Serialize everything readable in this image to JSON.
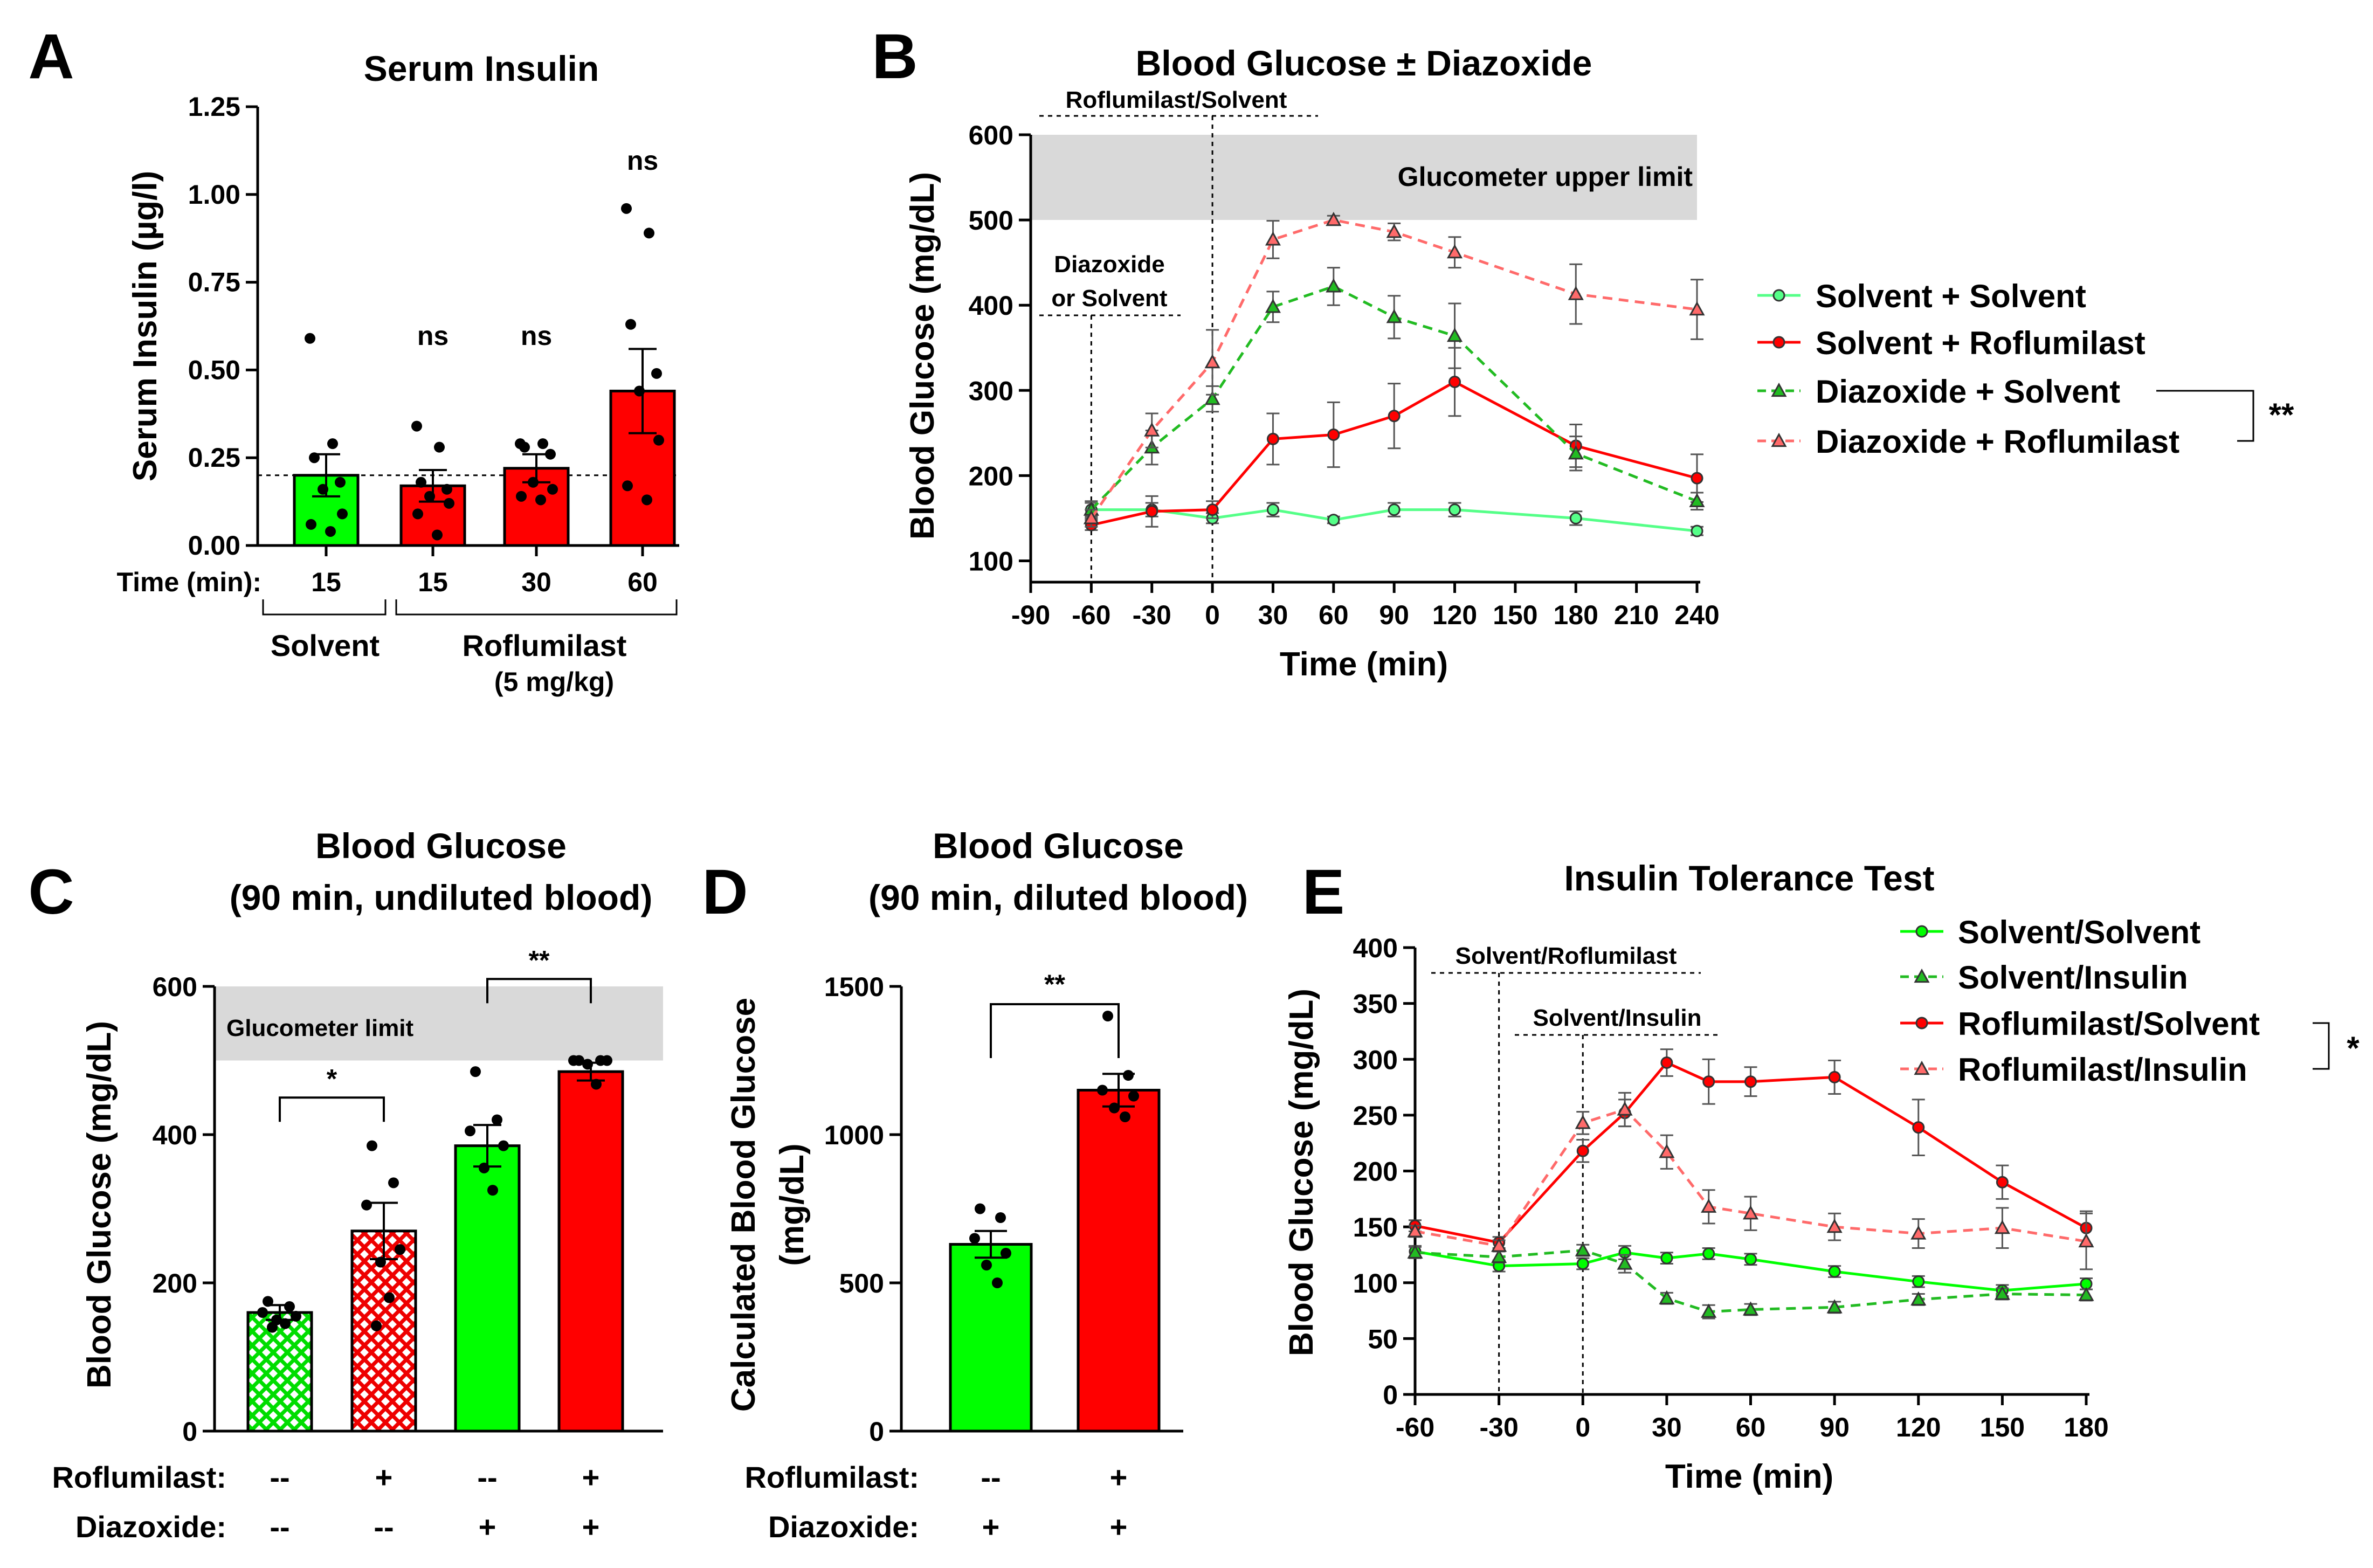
{
  "colors": {
    "green": "#00ff00",
    "red": "#ff0000",
    "darkred": "#cc0000",
    "lightgreen": "#55ff88",
    "salmon": "#ff6a6a",
    "gray": "#d9d9d9",
    "darkgreen": "#22bb22"
  },
  "chart_data": [
    {
      "id": "A",
      "panel_label": "A",
      "type": "bar",
      "title": "Serum Insulin",
      "ylabel": "Serum Insulin (µg/l)",
      "ylim": [
        0,
        1.25
      ],
      "yticks": [
        "0.00",
        "0.25",
        "0.50",
        "0.75",
        "1.00",
        "1.25"
      ],
      "reference_line": 0.2,
      "time_label": "Time (min):",
      "categories": [
        "15",
        "15",
        "30",
        "60"
      ],
      "values": [
        0.2,
        0.17,
        0.22,
        0.44
      ],
      "errors": [
        0.06,
        0.045,
        0.04,
        0.12
      ],
      "colors": [
        "green",
        "red",
        "red",
        "red"
      ],
      "points": [
        [
          0.59,
          0.29,
          0.25,
          0.18,
          0.16,
          0.09,
          0.06,
          0.04
        ],
        [
          0.34,
          0.28,
          0.18,
          0.16,
          0.14,
          0.12,
          0.09,
          0.03
        ],
        [
          0.29,
          0.29,
          0.28,
          0.26,
          0.18,
          0.16,
          0.14,
          0.13
        ],
        [
          0.96,
          0.89,
          0.63,
          0.49,
          0.44,
          0.3,
          0.17,
          0.13
        ]
      ],
      "sig_labels": [
        "",
        "ns",
        "ns",
        "ns"
      ],
      "groups": [
        {
          "label": "Solvent"
        },
        {
          "label": "Roflumilast",
          "sub": "(5 mg/kg)"
        }
      ]
    },
    {
      "id": "B",
      "panel_label": "B",
      "type": "line",
      "title": "Blood Glucose ± Diazoxide",
      "ylabel": "Blood Glucose (mg/dL)",
      "xlabel": "Time (min)",
      "xlim": [
        -90,
        240
      ],
      "ylim": [
        75,
        600
      ],
      "xticks": [
        "-90",
        "-60",
        "-30",
        "0",
        "30",
        "60",
        "90",
        "120",
        "150",
        "180",
        "210",
        "240"
      ],
      "yticks": [
        "100",
        "200",
        "300",
        "400",
        "500",
        "600"
      ],
      "band": {
        "from": 500,
        "to": 600,
        "label": "Glucometer upper limit"
      },
      "vlines": [
        -60,
        0
      ],
      "annotations": [
        "Roflumilast/Solvent",
        "Diazoxide",
        "or Solvent"
      ],
      "series": [
        {
          "name": "Solvent + Solvent",
          "x": [
            -60,
            -30,
            0,
            30,
            60,
            90,
            120,
            180,
            240
          ],
          "values": [
            160,
            160,
            150,
            160,
            148,
            160,
            160,
            150,
            135
          ],
          "errors": [
            8,
            8,
            6,
            8,
            4,
            8,
            8,
            8,
            5
          ],
          "color": "lightgreen",
          "dash": false,
          "marker": "circle"
        },
        {
          "name": "Solvent + Roflumilast",
          "x": [
            -60,
            -30,
            0,
            30,
            60,
            90,
            120,
            180,
            240
          ],
          "values": [
            142,
            158,
            160,
            243,
            248,
            270,
            310,
            235,
            197
          ],
          "errors": [
            6,
            18,
            10,
            30,
            38,
            38,
            40,
            25,
            28
          ],
          "color": "red",
          "dash": false,
          "marker": "circle"
        },
        {
          "name": "Diazoxide + Solvent",
          "x": [
            -60,
            -30,
            0,
            30,
            60,
            90,
            120,
            180,
            240
          ],
          "values": [
            160,
            233,
            290,
            398,
            422,
            386,
            364,
            226,
            170
          ],
          "errors": [
            10,
            20,
            15,
            18,
            22,
            25,
            38,
            20,
            10
          ],
          "color": "darkgreen",
          "dash": true,
          "marker": "triangle"
        },
        {
          "name": "Diazoxide + Roflumilast",
          "x": [
            -60,
            -30,
            0,
            30,
            60,
            90,
            120,
            180,
            240
          ],
          "values": [
            150,
            253,
            333,
            477,
            500,
            486,
            462,
            413,
            395
          ],
          "errors": [
            10,
            20,
            38,
            22,
            5,
            10,
            18,
            35,
            35
          ],
          "color": "salmon",
          "dash": true,
          "marker": "triangle"
        }
      ],
      "sig_label": "**"
    },
    {
      "id": "C",
      "panel_label": "C",
      "type": "bar",
      "title": "Blood Glucose",
      "subtitle": "(90 min, undiluted blood)",
      "ylabel": "Blood Glucose (mg/dL)",
      "ylim": [
        0,
        600
      ],
      "yticks": [
        "0",
        "200",
        "400",
        "600"
      ],
      "band": {
        "from": 500,
        "to": 600,
        "label": "Glucometer limit"
      },
      "values": [
        160,
        270,
        385,
        485
      ],
      "errors": [
        10,
        38,
        28,
        12
      ],
      "colors": [
        "green",
        "red",
        "green",
        "red"
      ],
      "hatched": [
        true,
        true,
        false,
        false
      ],
      "points": [
        [
          175,
          168,
          160,
          155,
          150,
          145,
          140
        ],
        [
          385,
          335,
          305,
          245,
          228,
          180,
          142
        ],
        [
          485,
          420,
          405,
          385,
          355,
          325
        ],
        [
          500,
          500,
          500,
          500,
          495,
          468
        ]
      ],
      "comparisons": [
        {
          "from": 0,
          "to": 1,
          "y": 450,
          "label": "*"
        },
        {
          "from": 2,
          "to": 3,
          "y": 610,
          "label": "**"
        }
      ],
      "rows": [
        {
          "label": "Roflumilast:",
          "values": [
            "--",
            "+",
            "--",
            "+"
          ]
        },
        {
          "label": "Diazoxide:",
          "values": [
            "--",
            "--",
            "+",
            "+"
          ]
        }
      ]
    },
    {
      "id": "D",
      "panel_label": "D",
      "type": "bar",
      "title": "Blood Glucose",
      "subtitle": "(90 min, diluted blood)",
      "ylabel": "Calculated Blood Glucose",
      "ylabel2": "(mg/dL)",
      "ylim": [
        0,
        1500
      ],
      "yticks": [
        "0",
        "500",
        "1000",
        "1500"
      ],
      "values": [
        630,
        1150
      ],
      "errors": [
        45,
        55
      ],
      "colors": [
        "green",
        "red"
      ],
      "points": [
        [
          750,
          720,
          650,
          600,
          560,
          500
        ],
        [
          1400,
          1200,
          1150,
          1130,
          1090,
          1060
        ]
      ],
      "comparisons": [
        {
          "from": 0,
          "to": 1,
          "y": 1440,
          "label": "**"
        }
      ],
      "rows": [
        {
          "label": "Roflumilast:",
          "values": [
            "--",
            "+"
          ]
        },
        {
          "label": "Diazoxide:",
          "values": [
            "+",
            "+"
          ]
        }
      ]
    },
    {
      "id": "E",
      "panel_label": "E",
      "type": "line",
      "title": "Insulin Tolerance Test",
      "ylabel": "Blood Glucose (mg/dL)",
      "xlabel": "Time (min)",
      "xlim": [
        -60,
        180
      ],
      "ylim": [
        0,
        400
      ],
      "xticks": [
        "-60",
        "-30",
        "0",
        "30",
        "60",
        "90",
        "120",
        "150",
        "180"
      ],
      "yticks": [
        "0",
        "50",
        "100",
        "150",
        "200",
        "250",
        "300",
        "350",
        "400"
      ],
      "vlines": [
        -30,
        0
      ],
      "annotations": [
        "Solvent/Roflumilast",
        "Solvent/Insulin"
      ],
      "series": [
        {
          "name": "Solvent/Solvent",
          "x": [
            -60,
            -30,
            0,
            15,
            30,
            45,
            60,
            90,
            120,
            150,
            180
          ],
          "values": [
            128,
            115,
            117,
            127,
            122,
            126,
            121,
            110,
            101,
            93,
            99
          ],
          "errors": [
            5,
            5,
            5,
            6,
            5,
            5,
            5,
            5,
            5,
            5,
            5
          ],
          "color": "green",
          "dash": false,
          "marker": "circle"
        },
        {
          "name": "Solvent/Insulin",
          "x": [
            -60,
            -30,
            0,
            15,
            30,
            45,
            60,
            90,
            120,
            150,
            180
          ],
          "values": [
            127,
            123,
            129,
            117,
            86,
            74,
            76,
            78,
            85,
            90,
            89
          ],
          "errors": [
            5,
            5,
            5,
            8,
            5,
            6,
            5,
            5,
            5,
            5,
            5
          ],
          "color": "darkgreen",
          "dash": true,
          "marker": "triangle"
        },
        {
          "name": "Roflumilast/Solvent",
          "x": [
            -60,
            -30,
            0,
            15,
            30,
            45,
            60,
            90,
            120,
            150,
            180
          ],
          "values": [
            151,
            136,
            218,
            252,
            297,
            280,
            280,
            284,
            239,
            190,
            149
          ],
          "errors": [
            5,
            5,
            10,
            12,
            12,
            20,
            13,
            15,
            25,
            15,
            15
          ],
          "color": "red",
          "dash": false,
          "marker": "circle"
        },
        {
          "name": "Roflumilast/Insulin",
          "x": [
            -60,
            -30,
            0,
            15,
            30,
            45,
            60,
            90,
            120,
            150,
            180
          ],
          "values": [
            146,
            133,
            243,
            255,
            217,
            168,
            162,
            150,
            144,
            149,
            137
          ],
          "errors": [
            5,
            5,
            10,
            15,
            15,
            15,
            15,
            12,
            13,
            18,
            25
          ],
          "color": "salmon",
          "dash": true,
          "marker": "triangle"
        }
      ],
      "sig_label": "*"
    }
  ]
}
